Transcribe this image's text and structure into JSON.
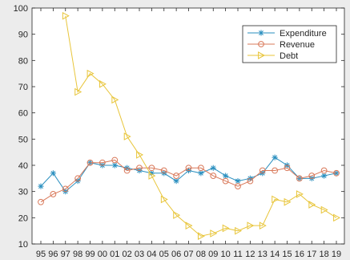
{
  "chart_data": {
    "type": "line",
    "categories": [
      "95",
      "96",
      "97",
      "98",
      "99",
      "00",
      "01",
      "02",
      "03",
      "04",
      "05",
      "06",
      "07",
      "08",
      "09",
      "10",
      "11",
      "12",
      "13",
      "14",
      "15",
      "16",
      "17",
      "18",
      "19"
    ],
    "ylim": [
      10,
      100
    ],
    "yticks": [
      10,
      20,
      30,
      40,
      50,
      60,
      70,
      80,
      90,
      100
    ],
    "grid": false,
    "legend_position": "top-right",
    "series": [
      {
        "name": "Expenditure",
        "color": "#2a8fbf",
        "marker": "asterisk",
        "values": [
          32,
          37,
          30,
          34,
          41,
          40,
          40,
          39,
          38,
          37,
          37,
          34,
          38,
          37,
          39,
          36,
          34,
          35,
          37,
          43,
          40,
          35,
          35,
          36,
          37
        ]
      },
      {
        "name": "Revenue",
        "color": "#d9795a",
        "marker": "circle",
        "values": [
          26,
          29,
          31,
          35,
          41,
          41,
          42,
          38,
          39,
          39,
          38,
          36,
          39,
          39,
          36,
          34,
          32,
          34,
          38,
          38,
          39,
          35,
          36,
          38,
          37
        ]
      },
      {
        "name": "Debt",
        "color": "#e8c53a",
        "marker": "triangle-right",
        "values": [
          null,
          null,
          97,
          68,
          75,
          71,
          65,
          51,
          44,
          36,
          27,
          21,
          17,
          13,
          14,
          16,
          15,
          17,
          17,
          27,
          26,
          29,
          25,
          23,
          20
        ]
      }
    ]
  }
}
